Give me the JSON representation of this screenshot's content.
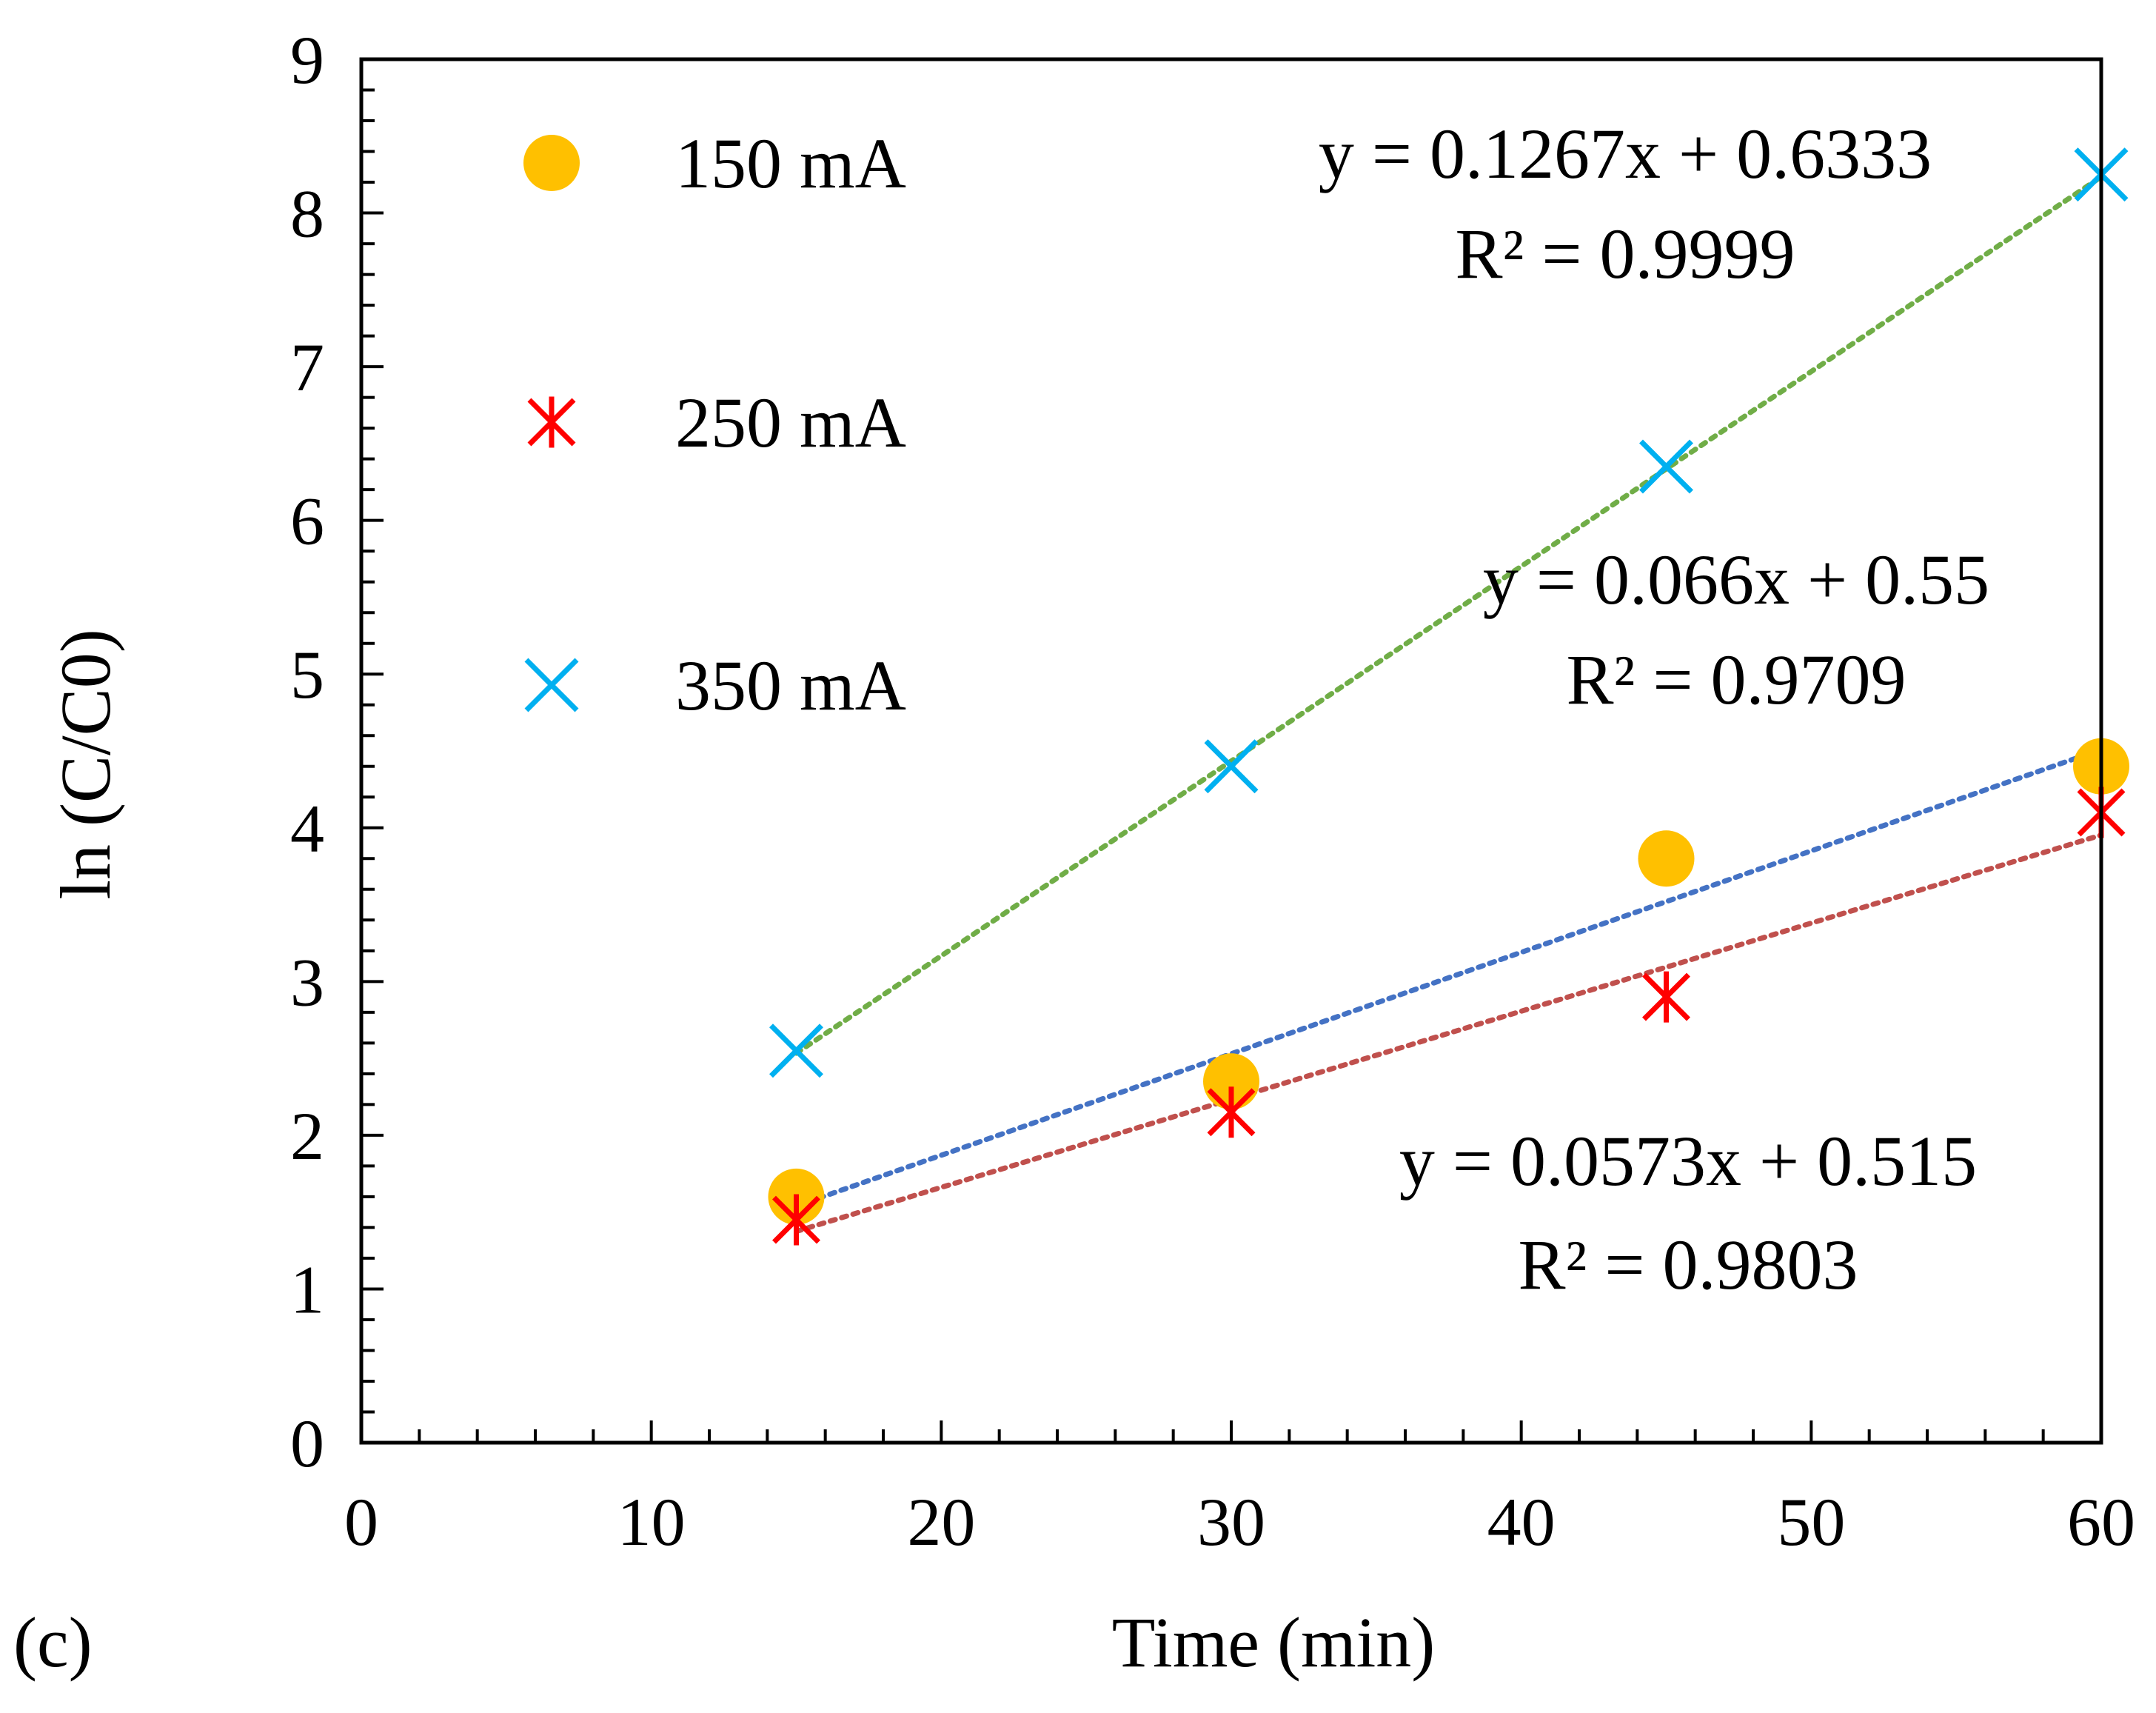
{
  "panel_label": "(c)",
  "chart_data": {
    "type": "scatter",
    "xlabel": "Time (min)",
    "ylabel": "ln (C/C0)",
    "xlim": [
      0,
      60
    ],
    "ylim": [
      0,
      9
    ],
    "x_major_step": 10,
    "x_minor_step": 2,
    "y_major_step": 1,
    "y_minor_step": 0.2,
    "grid": false,
    "legend_position": "top-left",
    "series": [
      {
        "name": "150 mA",
        "marker": "circle",
        "color": "#FFC000",
        "trend_color": "#4472C4",
        "x": [
          15,
          30,
          45,
          60
        ],
        "y": [
          1.6,
          2.35,
          3.8,
          4.4
        ],
        "trend": {
          "slope": 0.066,
          "intercept": 0.55
        },
        "equation": "y = 0.066x + 0.55",
        "r2": "R² = 0.9709"
      },
      {
        "name": "250 mA",
        "marker": "asterisk",
        "color": "#FF0000",
        "trend_color": "#C0504D",
        "x": [
          15,
          30,
          45,
          60
        ],
        "y": [
          1.45,
          2.15,
          2.9,
          4.1
        ],
        "trend": {
          "slope": 0.0573,
          "intercept": 0.515
        },
        "equation": "y = 0.0573x + 0.515",
        "r2": "R² = 0.9803"
      },
      {
        "name": "350 mA",
        "marker": "x",
        "color": "#00B0F0",
        "trend_color": "#70AD47",
        "x": [
          15,
          30,
          45,
          60
        ],
        "y": [
          2.55,
          4.4,
          6.35,
          8.25
        ],
        "trend": {
          "slope": 0.1267,
          "intercept": 0.6333
        },
        "equation": "y = 0.1267x + 0.6333",
        "r2": "R² = 0.9999"
      }
    ]
  }
}
